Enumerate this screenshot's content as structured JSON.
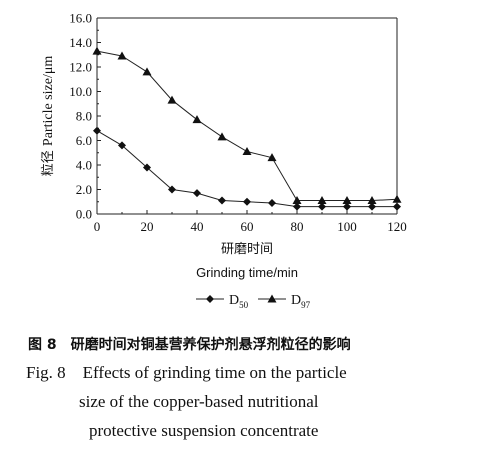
{
  "chart_data": {
    "type": "line",
    "ylabel_cn": "粒径",
    "ylabel": "Particle size/μm",
    "xlabel_cn": "研磨时间",
    "xlabel": "Grinding time/min",
    "xlim": [
      0,
      120
    ],
    "ylim": [
      0,
      16
    ],
    "x_ticks": [
      "0",
      "20",
      "40",
      "60",
      "80",
      "100",
      "120"
    ],
    "y_ticks": [
      "0.0",
      "2.0",
      "4.0",
      "6.0",
      "8.0",
      "10.0",
      "12.0",
      "14.0",
      "16.0"
    ],
    "grid": false,
    "legend_position": "bottom",
    "x": [
      0,
      10,
      20,
      30,
      40,
      50,
      60,
      70,
      80,
      90,
      100,
      110,
      120
    ],
    "series": [
      {
        "name": "D",
        "subscript": "50",
        "marker": "diamond",
        "values": [
          6.8,
          5.6,
          3.8,
          2.0,
          1.7,
          1.1,
          1.0,
          0.9,
          0.6,
          0.6,
          0.6,
          0.6,
          0.6
        ]
      },
      {
        "name": "D",
        "subscript": "97",
        "marker": "triangle",
        "values": [
          13.3,
          12.9,
          11.6,
          9.3,
          7.7,
          6.3,
          5.1,
          4.6,
          1.1,
          1.1,
          1.1,
          1.1,
          1.2
        ]
      }
    ]
  },
  "caption": {
    "cn_number": "图 8",
    "cn_text": "研磨时间对铜基营养保护剂悬浮剂粒径的影响",
    "en_lines": [
      "Fig. 8    Effects of grinding time on the particle",
      "size of the copper-based nutritional",
      "protective suspension concentrate"
    ]
  }
}
